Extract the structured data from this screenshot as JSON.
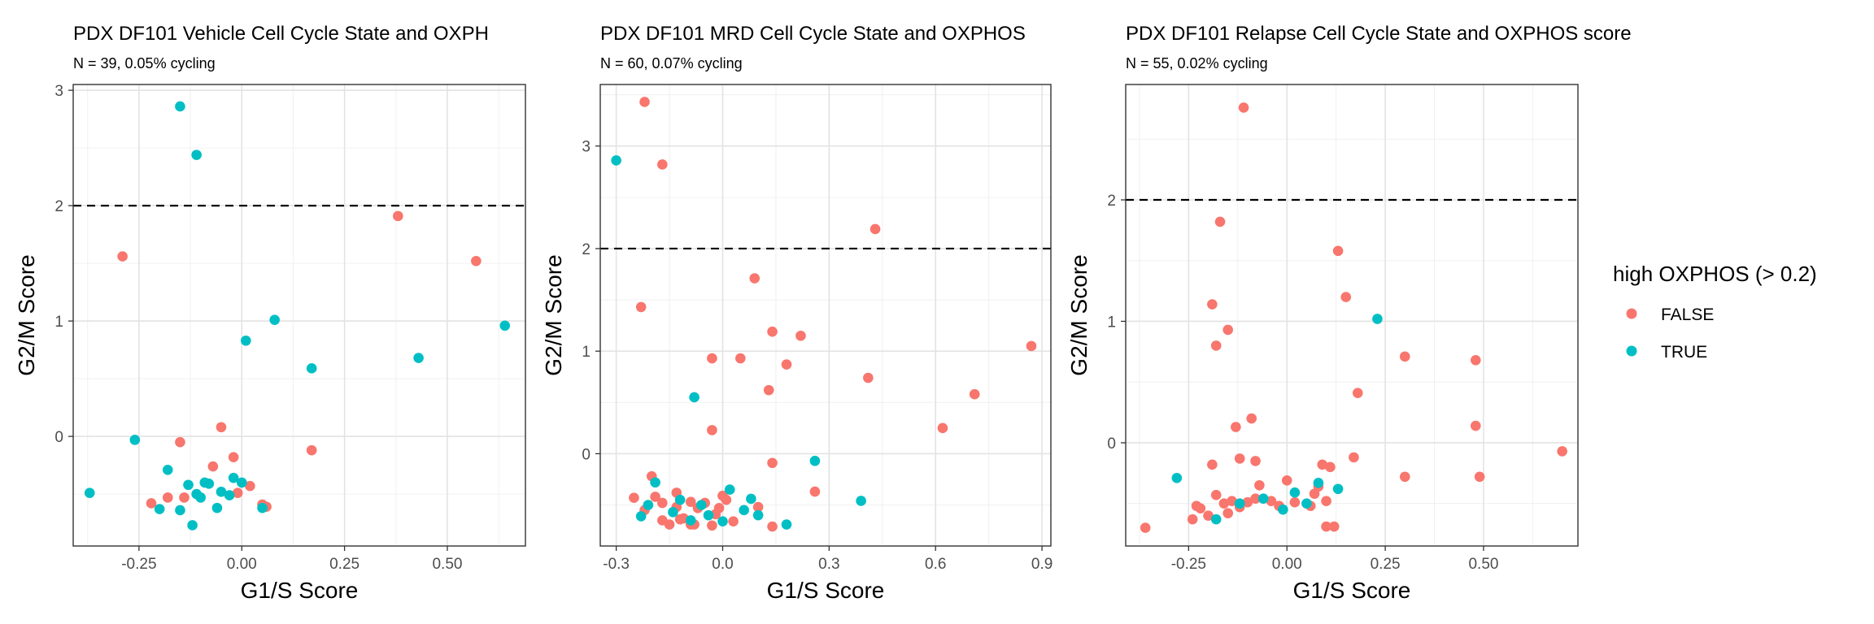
{
  "legend": {
    "title": "high OXPHOS (> 0.2)",
    "entries": [
      {
        "label": "FALSE",
        "color": "#F8766D"
      },
      {
        "label": "TRUE",
        "color": "#00BFC4"
      }
    ]
  },
  "chart_data": [
    {
      "type": "scatter",
      "title": "PDX DF101 Vehicle Cell Cycle State and OXPH",
      "subtitle": "N = 39, 0.05% cycling",
      "xlabel": "G1/S Score",
      "ylabel": "G2/M Score",
      "xlim": [
        -0.41,
        0.69
      ],
      "ylim": [
        -0.95,
        3.05
      ],
      "xticks": [
        -0.25,
        0.0,
        0.25,
        0.5
      ],
      "xtick_labels": [
        "-0.25",
        "0.00",
        "0.25",
        "0.50"
      ],
      "yticks": [
        0,
        1,
        2,
        3
      ],
      "ytick_labels": [
        "0",
        "1",
        "2",
        "3"
      ],
      "hline": 2,
      "grid": true,
      "series": [
        {
          "name": "FALSE",
          "color": "#F8766D",
          "points": [
            [
              -0.29,
              1.56
            ],
            [
              0.38,
              1.91
            ],
            [
              0.57,
              1.52
            ],
            [
              0.17,
              -0.12
            ],
            [
              -0.15,
              -0.05
            ],
            [
              -0.05,
              0.08
            ],
            [
              -0.02,
              -0.18
            ],
            [
              -0.07,
              -0.26
            ],
            [
              -0.22,
              -0.58
            ],
            [
              -0.18,
              -0.53
            ],
            [
              -0.14,
              -0.53
            ],
            [
              0.02,
              -0.43
            ],
            [
              0.05,
              -0.59
            ],
            [
              0.06,
              -0.61
            ],
            [
              -0.01,
              -0.49
            ]
          ]
        },
        {
          "name": "TRUE",
          "color": "#00BFC4",
          "points": [
            [
              -0.15,
              2.86
            ],
            [
              -0.11,
              2.44
            ],
            [
              -0.26,
              -0.03
            ],
            [
              0.08,
              1.01
            ],
            [
              0.01,
              0.83
            ],
            [
              0.17,
              0.59
            ],
            [
              0.43,
              0.68
            ],
            [
              0.64,
              0.96
            ],
            [
              -0.37,
              -0.49
            ],
            [
              -0.2,
              -0.63
            ],
            [
              -0.18,
              -0.29
            ],
            [
              -0.13,
              -0.42
            ],
            [
              -0.1,
              -0.53
            ],
            [
              -0.09,
              -0.4
            ],
            [
              -0.08,
              -0.41
            ],
            [
              -0.06,
              -0.62
            ],
            [
              -0.03,
              -0.51
            ],
            [
              -0.02,
              -0.36
            ],
            [
              0.0,
              -0.4
            ],
            [
              -0.12,
              -0.77
            ],
            [
              -0.15,
              -0.64
            ],
            [
              0.05,
              -0.62
            ],
            [
              -0.05,
              -0.48
            ],
            [
              -0.11,
              -0.5
            ]
          ]
        }
      ]
    },
    {
      "type": "scatter",
      "title": "PDX DF101 MRD Cell Cycle State and OXPHOS",
      "subtitle": "N = 60, 0.07% cycling",
      "xlabel": "G1/S Score",
      "ylabel": "G2/M Score",
      "xlim": [
        -0.345,
        0.925
      ],
      "ylim": [
        -0.9,
        3.6
      ],
      "xticks": [
        -0.3,
        0.0,
        0.3,
        0.6,
        0.9
      ],
      "xtick_labels": [
        "-0.3",
        "0.0",
        "0.3",
        "0.6",
        "0.9"
      ],
      "yticks": [
        0,
        1,
        2,
        3
      ],
      "ytick_labels": [
        "0",
        "1",
        "2",
        "3"
      ],
      "hline": 2,
      "grid": true,
      "series": [
        {
          "name": "FALSE",
          "color": "#F8766D",
          "points": [
            [
              -0.22,
              3.43
            ],
            [
              -0.17,
              2.82
            ],
            [
              -0.23,
              1.43
            ],
            [
              0.43,
              2.19
            ],
            [
              0.09,
              1.71
            ],
            [
              0.14,
              1.19
            ],
            [
              0.22,
              1.15
            ],
            [
              0.87,
              1.05
            ],
            [
              -0.03,
              0.93
            ],
            [
              0.05,
              0.93
            ],
            [
              0.18,
              0.87
            ],
            [
              0.41,
              0.74
            ],
            [
              0.71,
              0.58
            ],
            [
              0.13,
              0.62
            ],
            [
              0.62,
              0.25
            ],
            [
              -0.03,
              0.23
            ],
            [
              0.14,
              -0.09
            ],
            [
              0.26,
              -0.37
            ],
            [
              -0.25,
              -0.43
            ],
            [
              -0.22,
              -0.55
            ],
            [
              -0.19,
              -0.42
            ],
            [
              -0.17,
              -0.65
            ],
            [
              -0.15,
              -0.69
            ],
            [
              -0.13,
              -0.52
            ],
            [
              -0.11,
              -0.63
            ],
            [
              -0.09,
              -0.47
            ],
            [
              -0.07,
              -0.53
            ],
            [
              -0.05,
              -0.48
            ],
            [
              -0.03,
              -0.7
            ],
            [
              -0.01,
              -0.53
            ],
            [
              0.01,
              -0.45
            ],
            [
              0.03,
              -0.66
            ],
            [
              0.1,
              -0.52
            ],
            [
              0.14,
              -0.71
            ],
            [
              -0.2,
              -0.22
            ],
            [
              -0.13,
              -0.38
            ],
            [
              -0.08,
              -0.69
            ],
            [
              -0.02,
              -0.59
            ],
            [
              0.0,
              -0.41
            ],
            [
              -0.17,
              -0.48
            ],
            [
              -0.12,
              -0.64
            ],
            [
              -0.09,
              -0.69
            ]
          ]
        },
        {
          "name": "TRUE",
          "color": "#00BFC4",
          "points": [
            [
              -0.3,
              2.86
            ],
            [
              -0.08,
              0.55
            ],
            [
              -0.19,
              -0.28
            ],
            [
              0.26,
              -0.07
            ],
            [
              0.39,
              -0.46
            ],
            [
              -0.21,
              -0.5
            ],
            [
              0.02,
              -0.35
            ],
            [
              -0.09,
              -0.65
            ],
            [
              0.18,
              -0.69
            ],
            [
              0.0,
              -0.66
            ],
            [
              -0.06,
              -0.5
            ],
            [
              -0.14,
              -0.57
            ],
            [
              0.06,
              -0.55
            ],
            [
              -0.04,
              -0.6
            ],
            [
              -0.23,
              -0.61
            ],
            [
              0.08,
              -0.44
            ],
            [
              -0.12,
              -0.45
            ],
            [
              0.1,
              -0.6
            ]
          ]
        }
      ]
    },
    {
      "type": "scatter",
      "title": "PDX DF101 Relapse Cell Cycle State and OXPHOS score",
      "subtitle": "N = 55, 0.02% cycling",
      "xlabel": "G1/S Score",
      "ylabel": "G2/M Score",
      "xlim": [
        -0.41,
        0.74
      ],
      "ylim": [
        -0.85,
        2.95
      ],
      "xticks": [
        -0.25,
        0.0,
        0.25,
        0.5
      ],
      "xtick_labels": [
        "-0.25",
        "0.00",
        "0.25",
        "0.50"
      ],
      "yticks": [
        0,
        1,
        2
      ],
      "ytick_labels": [
        "0",
        "1",
        "2"
      ],
      "hline": 2,
      "grid": true,
      "series": [
        {
          "name": "FALSE",
          "color": "#F8766D",
          "points": [
            [
              -0.11,
              2.76
            ],
            [
              -0.17,
              1.82
            ],
            [
              0.13,
              1.58
            ],
            [
              0.15,
              1.2
            ],
            [
              -0.19,
              1.14
            ],
            [
              -0.15,
              0.93
            ],
            [
              -0.18,
              0.8
            ],
            [
              0.3,
              0.71
            ],
            [
              0.48,
              0.68
            ],
            [
              0.18,
              0.41
            ],
            [
              -0.09,
              0.2
            ],
            [
              -0.13,
              0.13
            ],
            [
              0.48,
              0.14
            ],
            [
              0.7,
              -0.07
            ],
            [
              -0.12,
              -0.13
            ],
            [
              -0.08,
              -0.15
            ],
            [
              0.17,
              -0.12
            ],
            [
              -0.19,
              -0.18
            ],
            [
              0.09,
              -0.18
            ],
            [
              0.11,
              -0.2
            ],
            [
              0.3,
              -0.28
            ],
            [
              0.49,
              -0.28
            ],
            [
              -0.36,
              -0.7
            ],
            [
              -0.24,
              -0.63
            ],
            [
              -0.22,
              -0.54
            ],
            [
              -0.2,
              -0.6
            ],
            [
              -0.18,
              -0.43
            ],
            [
              -0.16,
              -0.5
            ],
            [
              -0.14,
              -0.48
            ],
            [
              -0.12,
              -0.53
            ],
            [
              -0.1,
              -0.49
            ],
            [
              -0.08,
              -0.46
            ],
            [
              -0.07,
              -0.35
            ],
            [
              -0.02,
              -0.52
            ],
            [
              0.0,
              -0.31
            ],
            [
              0.02,
              -0.49
            ],
            [
              0.06,
              -0.52
            ],
            [
              0.08,
              -0.36
            ],
            [
              0.1,
              -0.48
            ],
            [
              0.12,
              -0.69
            ],
            [
              0.1,
              -0.69
            ],
            [
              -0.04,
              -0.48
            ],
            [
              0.07,
              -0.42
            ],
            [
              -0.23,
              -0.52
            ],
            [
              -0.15,
              -0.58
            ]
          ]
        },
        {
          "name": "TRUE",
          "color": "#00BFC4",
          "points": [
            [
              0.23,
              1.02
            ],
            [
              -0.28,
              -0.29
            ],
            [
              0.13,
              -0.38
            ],
            [
              -0.18,
              -0.63
            ],
            [
              -0.12,
              -0.5
            ],
            [
              0.08,
              -0.33
            ],
            [
              -0.06,
              -0.46
            ],
            [
              0.02,
              -0.41
            ],
            [
              -0.01,
              -0.55
            ],
            [
              0.05,
              -0.5
            ]
          ]
        }
      ]
    }
  ]
}
